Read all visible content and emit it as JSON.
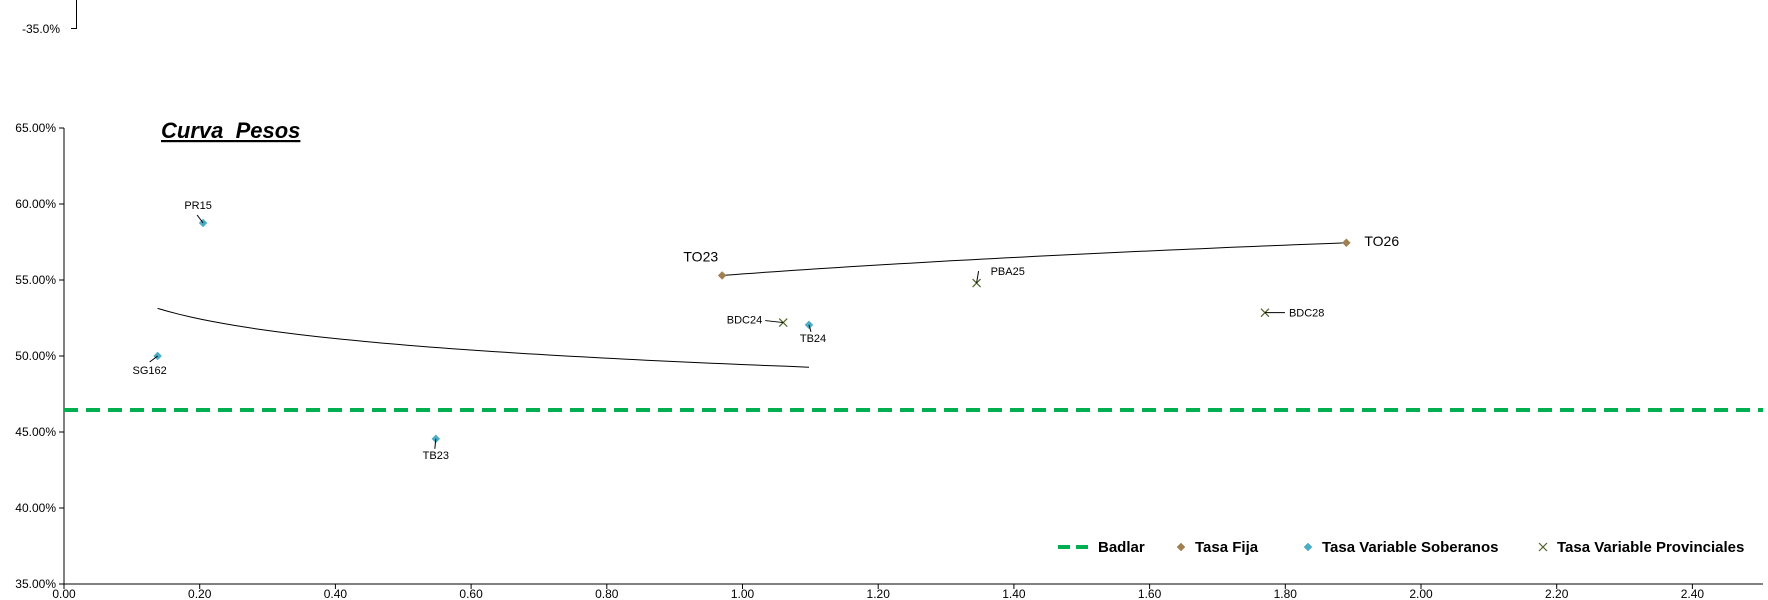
{
  "top_fragment": {
    "tick_label": "-35.0%"
  },
  "chart_data": {
    "type": "scatter",
    "title": "Curva  Pesos",
    "xlabel": "",
    "ylabel": "",
    "xlim": [
      0,
      2.5
    ],
    "ylim": [
      0.35,
      0.65
    ],
    "x_ticks": [
      "0.00",
      "0.20",
      "0.40",
      "0.60",
      "0.80",
      "1.00",
      "1.20",
      "1.40",
      "1.60",
      "1.80",
      "2.00",
      "2.20",
      "2.40"
    ],
    "x_tick_values": [
      0,
      0.2,
      0.4,
      0.6,
      0.8,
      1.0,
      1.2,
      1.4,
      1.6,
      1.8,
      2.0,
      2.2,
      2.4
    ],
    "y_ticks": [
      "35.00%",
      "40.00%",
      "45.00%",
      "50.00%",
      "55.00%",
      "60.00%",
      "65.00%"
    ],
    "y_tick_values": [
      0.35,
      0.4,
      0.45,
      0.5,
      0.55,
      0.6,
      0.65
    ],
    "grid": false,
    "legend_position": "bottom-right",
    "series": [
      {
        "name": "Badlar",
        "kind": "hline",
        "y": 0.4645,
        "color": "#00b050"
      },
      {
        "name": "Tasa Fija",
        "kind": "points",
        "marker": "diamond",
        "color": "#a08050",
        "points": [
          {
            "label": "TO23",
            "x": 0.97,
            "y": 0.553
          },
          {
            "label": "TO26",
            "x": 1.89,
            "y": 0.5745
          }
        ]
      },
      {
        "name": "Tasa Variable Soberanos",
        "kind": "points",
        "marker": "diamond",
        "color": "#4bacc6",
        "points": [
          {
            "label": "PR15",
            "x": 0.205,
            "y": 0.5875
          },
          {
            "label": "SG162",
            "x": 0.138,
            "y": 0.5
          },
          {
            "label": "TB23",
            "x": 0.548,
            "y": 0.4455
          },
          {
            "label": "TB24",
            "x": 1.098,
            "y": 0.5205
          }
        ]
      },
      {
        "name": "Tasa Variable Provinciales",
        "kind": "points",
        "marker": "x",
        "color": "#4f6228",
        "points": [
          {
            "label": "BDC24",
            "x": 1.06,
            "y": 0.522
          },
          {
            "label": "PBA25",
            "x": 1.345,
            "y": 0.548
          },
          {
            "label": "BDC28",
            "x": 1.77,
            "y": 0.5285
          }
        ]
      }
    ],
    "trendlines": [
      {
        "series": "Tasa Fija",
        "from_x": 0.97,
        "to_x": 1.89
      },
      {
        "series": "Tasa Variable Soberanos",
        "from_x": 0.138,
        "to_x": 1.098
      }
    ]
  }
}
